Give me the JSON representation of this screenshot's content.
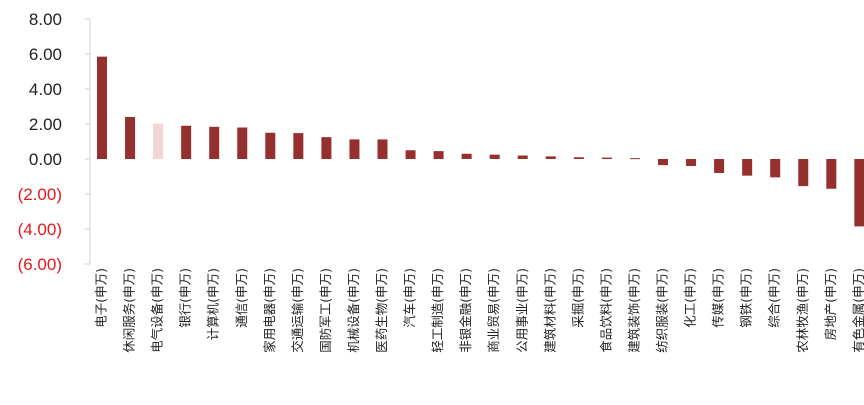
{
  "chart_data": {
    "type": "bar",
    "title": "",
    "xlabel": "",
    "ylabel": "",
    "ylim": [
      -6,
      8
    ],
    "yticks": [
      8,
      6,
      4,
      2,
      0,
      -2,
      -4,
      -6
    ],
    "ytick_labels": [
      "8.00",
      "6.00",
      "4.00",
      "2.00",
      "0.00",
      "(2.00)",
      "(4.00)",
      "(6.00)"
    ],
    "grid": false,
    "legend": "none",
    "colors": {
      "bar": "#96302f",
      "highlight": "#f2d6d5",
      "positive_tick": "#222222",
      "negative_tick": "#e8171b",
      "axis": "#d0d0d0"
    },
    "highlight_category": "电气设备(申万)",
    "categories": [
      "电子(申万)",
      "休闲服务(申万)",
      "电气设备(申万)",
      "银行(申万)",
      "计算机(申万)",
      "通信(申万)",
      "家用电器(申万)",
      "交通运输(申万)",
      "国防军工(申万)",
      "机械设备(申万)",
      "医药生物(申万)",
      "汽车(申万)",
      "轻工制造(申万)",
      "非银金融(申万)",
      "商业贸易(申万)",
      "公用事业(申万)",
      "建筑材料(申万)",
      "采掘(申万)",
      "食品饮料(申万)",
      "建筑装饰(申万)",
      "纺织服装(申万)",
      "化工(申万)",
      "传媒(申万)",
      "钢铁(申万)",
      "综合(申万)",
      "农林牧渔(申万)",
      "房地产(申万)",
      "有色金属(申万)"
    ],
    "values": [
      5.85,
      2.4,
      2.02,
      1.9,
      1.84,
      1.8,
      1.5,
      1.48,
      1.25,
      1.12,
      1.12,
      0.5,
      0.45,
      0.3,
      0.25,
      0.2,
      0.15,
      0.1,
      0.08,
      0.05,
      -0.35,
      -0.4,
      -0.8,
      -0.95,
      -1.05,
      -1.55,
      -1.7,
      -3.85
    ]
  }
}
